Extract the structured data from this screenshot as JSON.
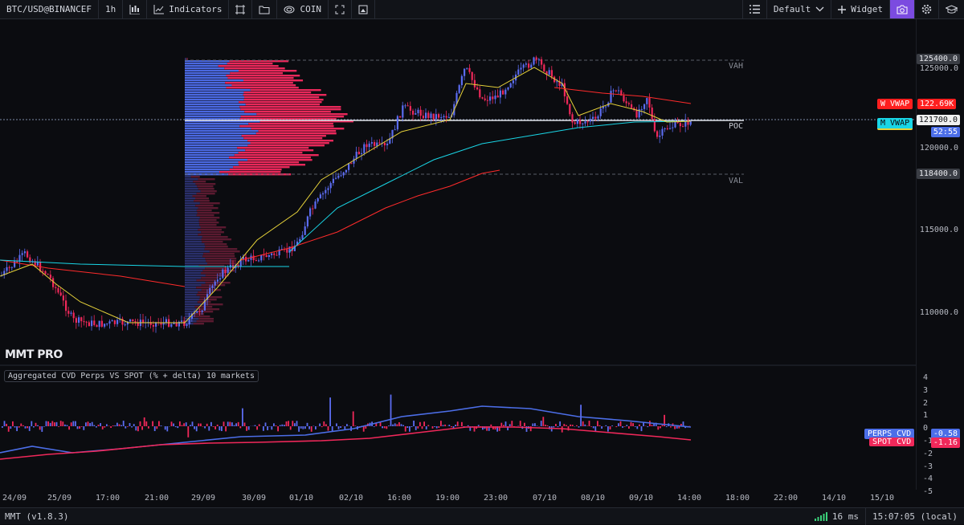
{
  "toolbar": {
    "symbol": "BTC/USD@BINANCEF",
    "timeframe": "1h",
    "indicators_label": "Indicators",
    "exchange_label": "COIN",
    "layout_label": "Default",
    "widget_label": "Widget"
  },
  "price_axis": {
    "labels": [
      "125000.0",
      "120000.0",
      "115000.0",
      "110000.0"
    ],
    "vah_price": "125400.0",
    "val_price": "118400.0",
    "current_price": "121700.0",
    "countdown": "52:55"
  },
  "levels": {
    "vah": "VAH",
    "poc": "POC",
    "val": "VAL"
  },
  "vwap_tags": {
    "weekly": "W VWAP",
    "weekly_value": "122.69K",
    "monthly": "M VWAP"
  },
  "brand": "MMT PRO",
  "indicator": {
    "title": "Aggregated CVD Perps VS SPOT (% + delta) 10 markets",
    "axis_labels": [
      "4",
      "3",
      "2",
      "1",
      "0",
      "-1",
      "-2",
      "-3",
      "-4",
      "-5"
    ],
    "perps_label": "PERPS CVD",
    "perps_value": "-0.58",
    "spot_label": "SPOT CVD",
    "spot_value": "-1.16"
  },
  "time_axis": [
    "24/09",
    "25/09",
    "17:00",
    "21:00",
    "29/09",
    "30/09",
    "01/10",
    "02/10",
    "16:00",
    "19:00",
    "23:00",
    "07/10",
    "08/10",
    "09/10",
    "14:00",
    "18:00",
    "22:00",
    "14/10",
    "15/10"
  ],
  "status": {
    "version": "MMT (v1.8.3)",
    "latency": "16 ms",
    "clock": "15:07:05 (local)"
  },
  "colors": {
    "up": "#5b6cf0",
    "down": "#f0285a",
    "accent": "#7b4be0",
    "vwap_w": "#ff2b2b",
    "vwap_m": "#19d6e6"
  }
}
